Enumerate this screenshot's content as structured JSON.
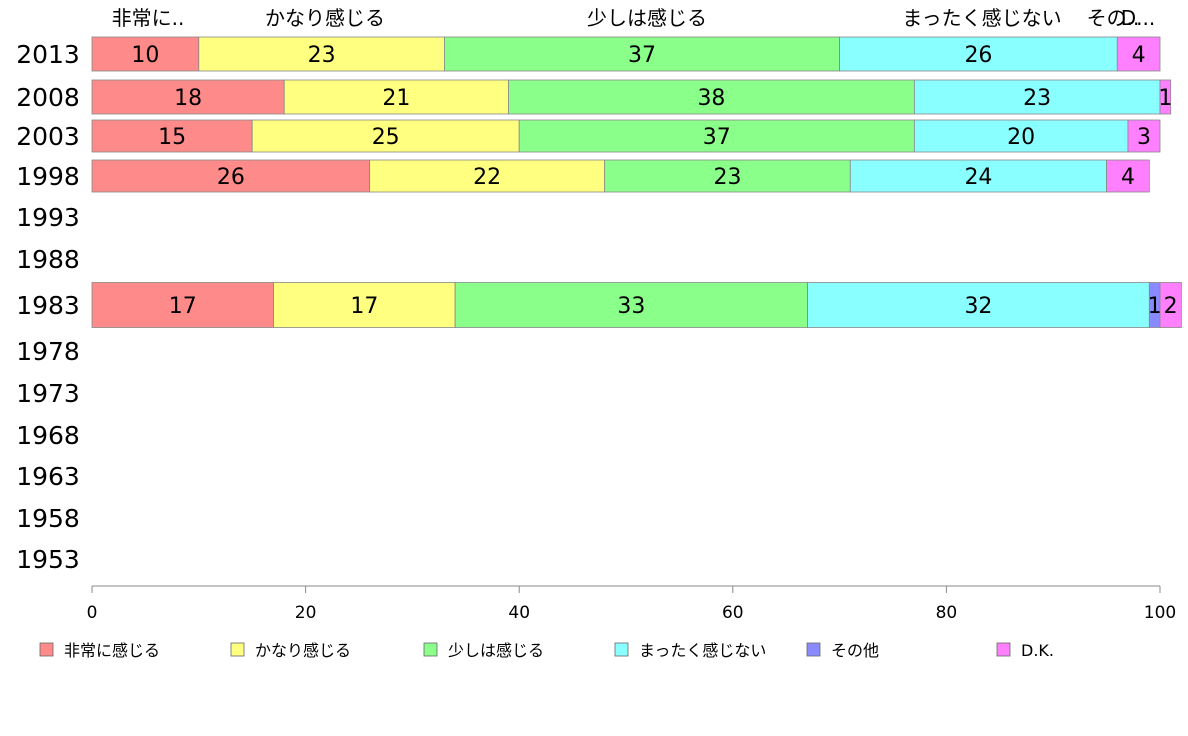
{
  "chart_data": {
    "type": "bar",
    "orientation": "horizontal",
    "stacked": true,
    "categories": [
      "2013",
      "2008",
      "2003",
      "1998",
      "1993",
      "1988",
      "1983",
      "1978",
      "1973",
      "1968",
      "1963",
      "1958",
      "1953"
    ],
    "series": [
      {
        "name": "非常に感じる",
        "top_label": "非常に..",
        "color": "#FF8A8A",
        "values": [
          10,
          18,
          15,
          26,
          null,
          null,
          17,
          null,
          null,
          null,
          null,
          null,
          null
        ]
      },
      {
        "name": "かなり感じる",
        "top_label": "かなり感じる",
        "color": "#FFFF80",
        "values": [
          23,
          21,
          25,
          22,
          null,
          null,
          17,
          null,
          null,
          null,
          null,
          null,
          null
        ]
      },
      {
        "name": "少しは感じる",
        "top_label": "少しは感じる",
        "color": "#8AFF8A",
        "values": [
          37,
          38,
          37,
          23,
          null,
          null,
          33,
          null,
          null,
          null,
          null,
          null,
          null
        ]
      },
      {
        "name": "まったく感じない",
        "top_label": "まったく感じない",
        "color": "#8AFFFF",
        "values": [
          26,
          23,
          20,
          24,
          null,
          null,
          32,
          null,
          null,
          null,
          null,
          null,
          null
        ]
      },
      {
        "name": "その他",
        "top_label": "その..",
        "color": "#8A8AFF",
        "values": [
          0,
          0,
          0,
          0,
          null,
          null,
          1,
          null,
          null,
          null,
          null,
          null,
          null
        ]
      },
      {
        "name": "D.K.",
        "top_label": "D...",
        "color": "#FF80FF",
        "values": [
          4,
          1,
          3,
          4,
          null,
          null,
          2,
          null,
          null,
          null,
          null,
          null,
          null
        ]
      }
    ],
    "data_labels": [
      [
        "10",
        "23",
        "37",
        "26",
        "",
        "4"
      ],
      [
        "18",
        "21",
        "38",
        "23",
        "",
        "1"
      ],
      [
        "15",
        "25",
        "37",
        "20",
        "",
        "3"
      ],
      [
        "26",
        "22",
        "23",
        "24",
        "",
        "4"
      ],
      [],
      [],
      [
        "17",
        "17",
        "33",
        "32",
        "1",
        "2"
      ],
      [],
      [],
      [],
      [],
      [],
      []
    ],
    "xlim": [
      0,
      100
    ],
    "xticks": [
      "0",
      "20",
      "40",
      "60",
      "80",
      "100"
    ],
    "grid": false,
    "legend_position": "bottom",
    "title": "",
    "xlabel": "",
    "ylabel": ""
  }
}
